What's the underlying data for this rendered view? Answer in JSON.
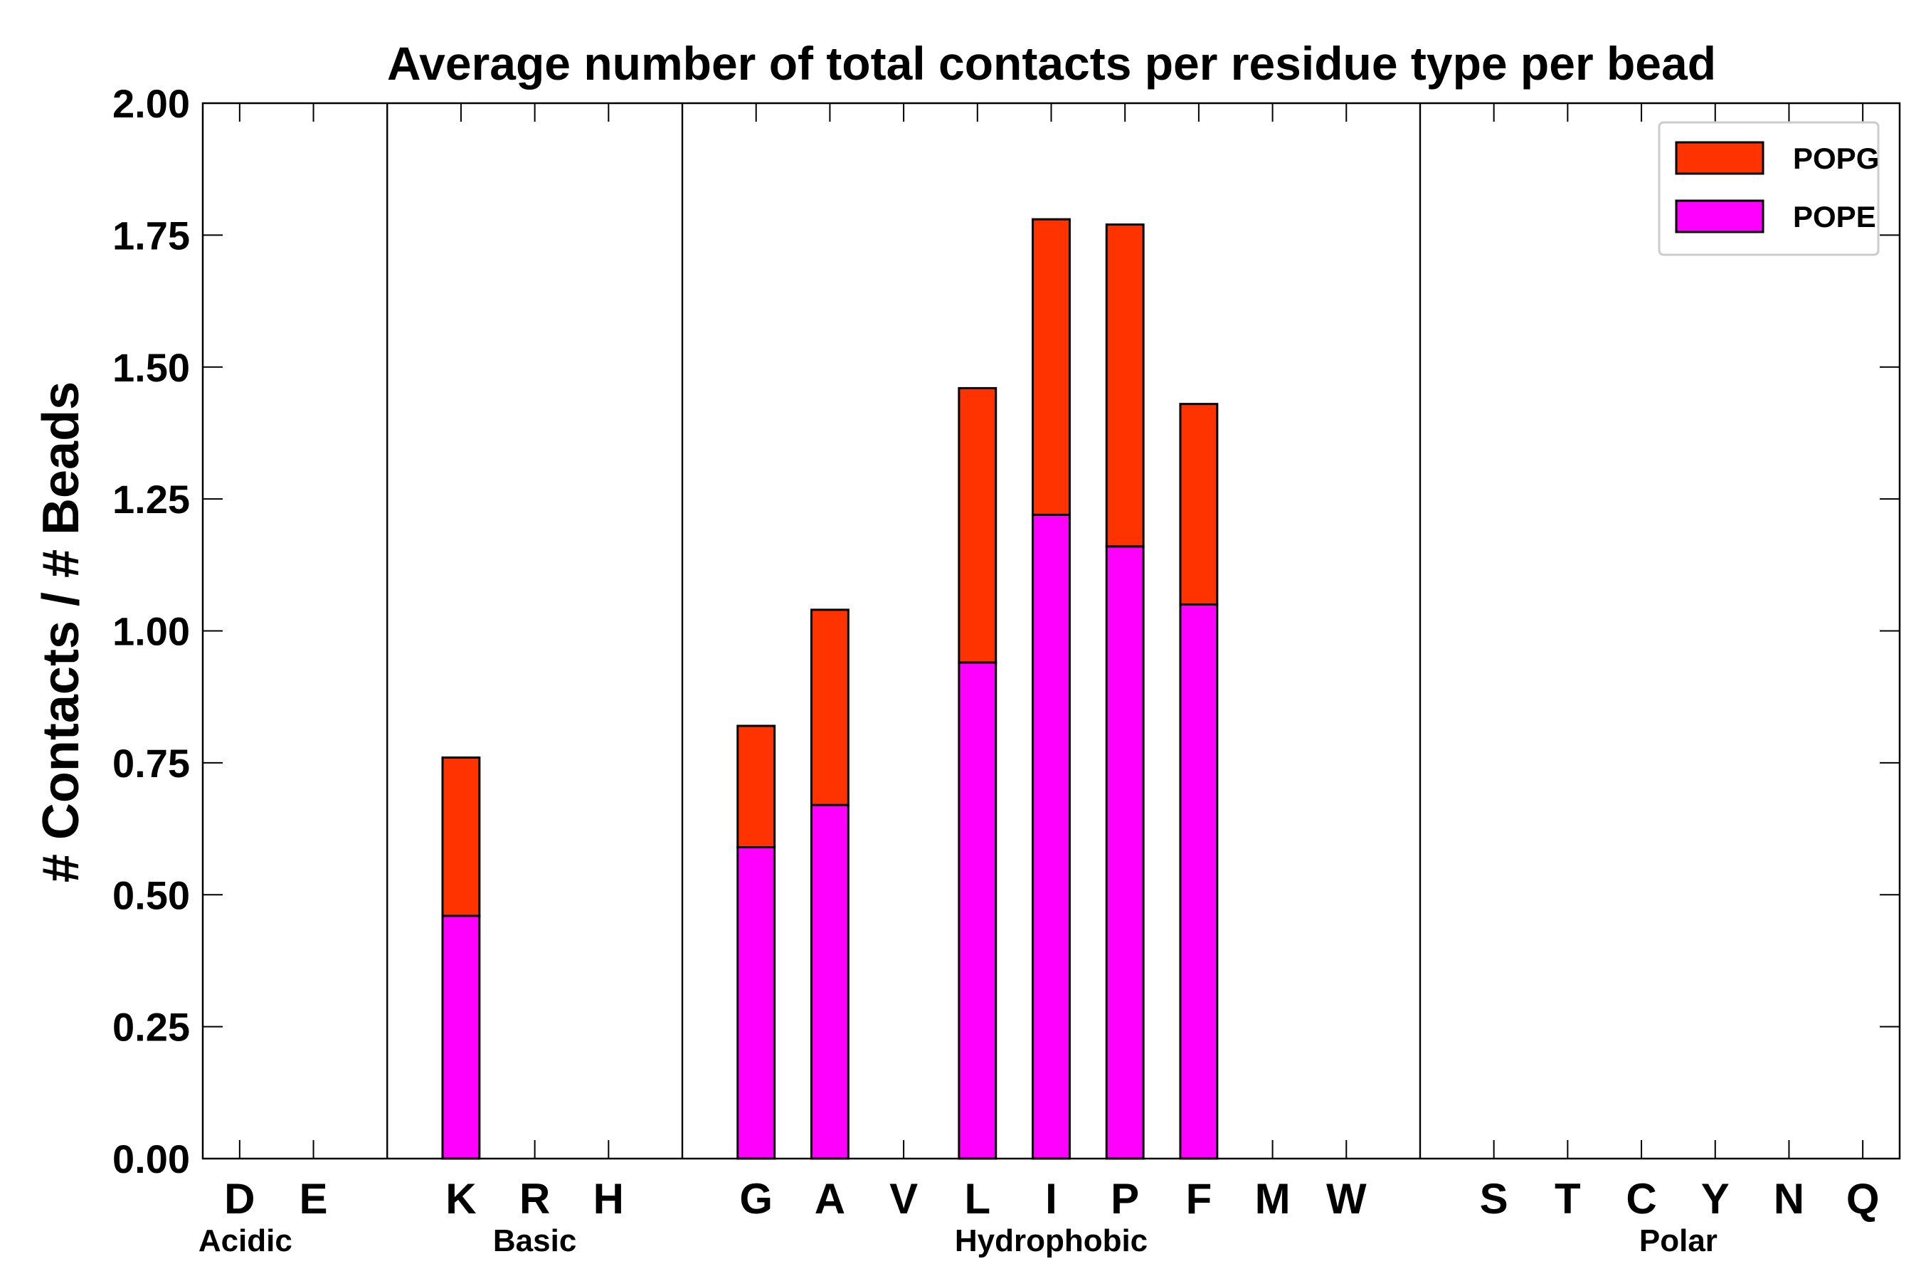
{
  "chart_data": {
    "type": "bar",
    "stacked": true,
    "title": "Average number of total contacts per residue type per bead",
    "xlabel": "",
    "ylabel": "# Contacts / # Beads",
    "ylim": [
      0,
      2.0
    ],
    "yticks": [
      "0.00",
      "0.25",
      "0.50",
      "0.75",
      "1.00",
      "1.25",
      "1.50",
      "1.75",
      "2.00"
    ],
    "categories": [
      "D",
      "E",
      "K",
      "R",
      "H",
      "G",
      "A",
      "V",
      "L",
      "I",
      "P",
      "F",
      "M",
      "W",
      "S",
      "T",
      "C",
      "Y",
      "N",
      "Q"
    ],
    "groups": [
      {
        "label": "Acidic",
        "members": [
          "D",
          "E"
        ]
      },
      {
        "label": "Basic",
        "members": [
          "K",
          "R",
          "H"
        ]
      },
      {
        "label": "Hydrophobic",
        "members": [
          "G",
          "A",
          "V",
          "L",
          "I",
          "P",
          "F",
          "M",
          "W"
        ]
      },
      {
        "label": "Polar",
        "members": [
          "S",
          "T",
          "C",
          "Y",
          "N",
          "Q"
        ]
      }
    ],
    "series": [
      {
        "name": "POPE",
        "color": "#ff00ff",
        "values": [
          0,
          0,
          0.46,
          0,
          0,
          0.59,
          0.67,
          0,
          0.94,
          1.22,
          1.16,
          1.05,
          0,
          0,
          0,
          0,
          0,
          0,
          0,
          0
        ]
      },
      {
        "name": "POPG",
        "color": "#ff3300",
        "values": [
          0,
          0,
          0.3,
          0,
          0,
          0.23,
          0.37,
          0,
          0.52,
          0.56,
          0.61,
          0.38,
          0,
          0,
          0,
          0,
          0,
          0,
          0,
          0
        ]
      }
    ],
    "legend": {
      "position": "top-right",
      "order": [
        "POPG",
        "POPE"
      ]
    },
    "grid": false
  }
}
